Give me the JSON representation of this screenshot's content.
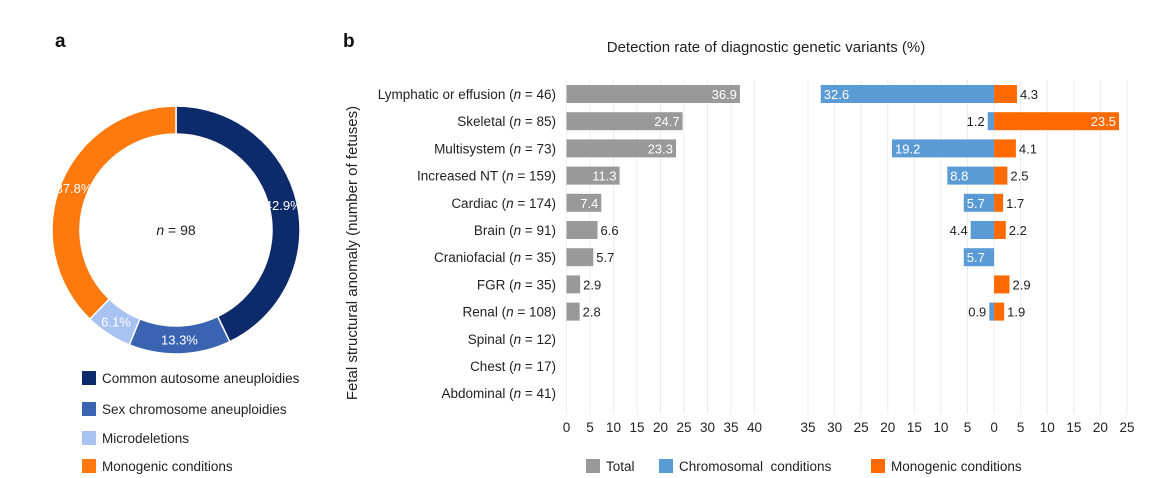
{
  "panel_a_label": "a",
  "panel_b_label": "b",
  "chart_data": [
    {
      "type": "pie",
      "variant": "donut",
      "center_label": {
        "prefix": "n",
        "text": " = 98"
      },
      "slices": [
        {
          "name": "Common autosome aneuploidies",
          "value": 42.9,
          "label": "42.9%",
          "color": "#0d2a6b"
        },
        {
          "name": "Sex chromosome aneuploidies",
          "value": 13.3,
          "label": "13.3%",
          "color": "#3a64b2"
        },
        {
          "name": "Microdeletions",
          "value": 6.1,
          "label": "6.1%",
          "color": "#a8c3f2"
        },
        {
          "name": "Monogenic conditions",
          "value": 37.8,
          "label": "37.8%",
          "color": "#ff7a0e"
        }
      ],
      "legend": [
        {
          "text": "Common autosome aneuploidies",
          "color": "#0d2a6b"
        },
        {
          "text": "Sex chromosome aneuploidies",
          "color": "#3a64b2"
        },
        {
          "text": "Microdeletions",
          "color": "#a8c3f2"
        },
        {
          "text": "Monogenic conditions",
          "color": "#ff7a0e"
        }
      ]
    },
    {
      "type": "bar",
      "orientation": "horizontal",
      "title": "Detection rate of diagnostic genetic variants (%)",
      "ylabel": "Fetal structural anomaly (number of fetuses)",
      "categories": [
        {
          "name": "Lymphatic or effusion",
          "n": "46"
        },
        {
          "name": "Skeletal",
          "n": "85"
        },
        {
          "name": "Multisystem",
          "n": "73"
        },
        {
          "name": "Increased NT",
          "n": "159"
        },
        {
          "name": "Cardiac",
          "n": "174"
        },
        {
          "name": "Brain",
          "n": "91"
        },
        {
          "name": "Craniofacial",
          "n": "35"
        },
        {
          "name": "FGR",
          "n": "35"
        },
        {
          "name": "Renal",
          "n": "108"
        },
        {
          "name": "Spinal",
          "n": "12"
        },
        {
          "name": "Chest",
          "n": "17"
        },
        {
          "name": "Abdominal",
          "n": "41"
        }
      ],
      "total": {
        "name": "Total",
        "color": "#999999",
        "xlim": [
          0,
          40
        ],
        "ticks": [
          "0",
          "5",
          "10",
          "15",
          "20",
          "25",
          "30",
          "35",
          "40"
        ],
        "values": [
          36.9,
          24.7,
          23.3,
          11.3,
          7.4,
          6.6,
          5.7,
          2.9,
          2.8,
          null,
          null,
          null
        ],
        "labels": [
          "36.9",
          "24.7",
          "23.3",
          "11.3",
          "7.4",
          "6.6",
          "5.7",
          "2.9",
          "2.8",
          "",
          "",
          ""
        ]
      },
      "split": {
        "xlim": [
          -35,
          25
        ],
        "ticks": [
          "35",
          "30",
          "25",
          "20",
          "15",
          "10",
          "5",
          "0",
          "5",
          "10",
          "15",
          "20",
          "25"
        ],
        "chromosomal": {
          "name": "Chromosomal  conditions",
          "color": "#5b9bd5",
          "values": [
            32.6,
            1.2,
            19.2,
            8.8,
            5.7,
            4.4,
            5.7,
            null,
            0.9,
            null,
            null,
            null
          ],
          "labels": [
            "32.6",
            "1.2",
            "19.2",
            "8.8",
            "5.7",
            "4.4",
            "5.7",
            "",
            "0.9",
            "",
            "",
            ""
          ]
        },
        "monogenic": {
          "name": "Monogenic conditions",
          "color": "#ff6a00",
          "values": [
            4.3,
            23.5,
            4.1,
            2.5,
            1.7,
            2.2,
            null,
            2.9,
            1.9,
            null,
            null,
            null
          ],
          "labels": [
            "4.3",
            "23.5",
            "4.1",
            "2.5",
            "1.7",
            "2.2",
            "",
            "2.9",
            "1.9",
            "",
            "",
            ""
          ]
        }
      },
      "legend": [
        {
          "text": "Total",
          "color": "#999999"
        },
        {
          "text": "Chromosomal  conditions",
          "color": "#5b9bd5"
        },
        {
          "text": "Monogenic conditions",
          "color": "#ff6a00"
        }
      ]
    }
  ]
}
